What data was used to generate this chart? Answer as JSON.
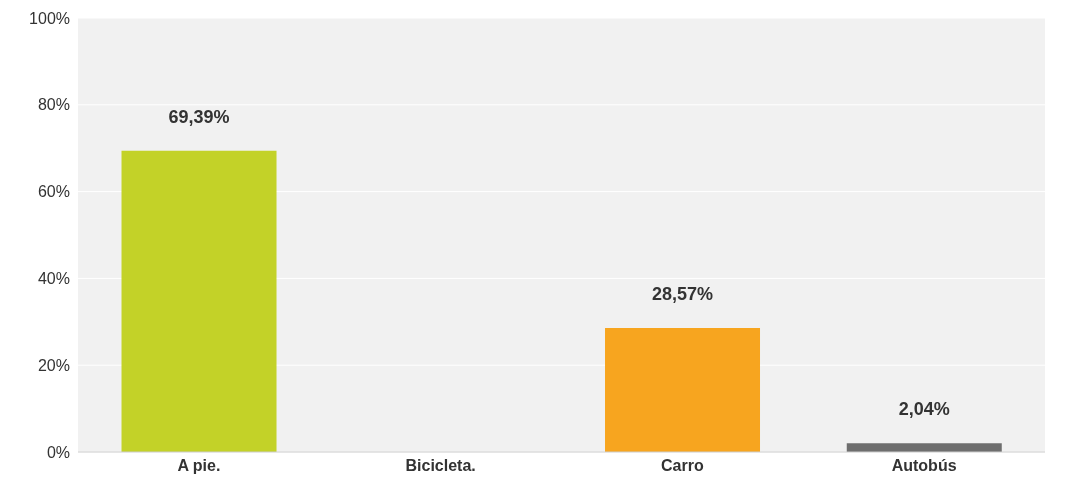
{
  "chart_data": {
    "type": "bar",
    "categories": [
      "A pie.",
      "Bicicleta.",
      "Carro",
      "Autobús"
    ],
    "values": [
      69.39,
      0,
      28.57,
      2.04
    ],
    "colors": [
      "#c3d228",
      "#999999",
      "#f7a51f",
      "#6e6e6e"
    ],
    "value_labels": [
      "69,39%",
      null,
      "28,57%",
      "2,04%"
    ],
    "ylim": [
      0,
      100
    ],
    "yticks": [
      {
        "value": 0,
        "label": "0%"
      },
      {
        "value": 20,
        "label": "20%"
      },
      {
        "value": 40,
        "label": "40%"
      },
      {
        "value": 60,
        "label": "60%"
      },
      {
        "value": 80,
        "label": "80%"
      },
      {
        "value": 100,
        "label": "100%"
      }
    ],
    "grid": "y"
  }
}
